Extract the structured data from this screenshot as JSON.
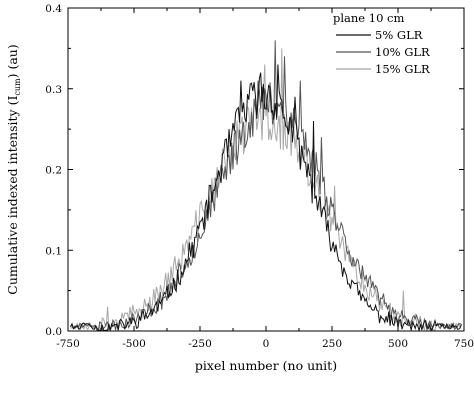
{
  "chart_data": {
    "type": "line",
    "xlabel": "pixel number (no unit)",
    "ylabel_main": "Cumulative indexed intensity (I",
    "ylabel_sub": "cum",
    "ylabel_end": ") (au)",
    "xlim": [
      -750,
      750
    ],
    "ylim": [
      0.0,
      0.4
    ],
    "x_ticks": [
      -750,
      -500,
      -250,
      0,
      250,
      500,
      750
    ],
    "x_tick_labels": [
      "-750",
      "-500",
      "-250",
      "0",
      "250",
      "500",
      "750"
    ],
    "y_ticks": [
      0.0,
      0.1,
      0.2,
      0.3,
      0.4
    ],
    "y_tick_labels": [
      "0.0",
      "0.1",
      "0.2",
      "0.3",
      "0.4"
    ],
    "grid": false,
    "legend": {
      "title": "plane 10 cm",
      "position": "top-right"
    },
    "series": [
      {
        "name": "5% GLR",
        "color": "#111111",
        "center": -10,
        "sigma": 185,
        "peak": 0.29,
        "noise": 0.02,
        "seed": 11,
        "spikes": [
          [
            -740,
            0.03
          ],
          [
            -700,
            0.07
          ],
          [
            -95,
            0.31
          ],
          [
            -20,
            0.32
          ],
          [
            45,
            0.33
          ],
          [
            110,
            0.29
          ],
          [
            180,
            0.26
          ]
        ]
      },
      {
        "name": "10% GLR",
        "color": "#555555",
        "center": 20,
        "sigma": 205,
        "peak": 0.28,
        "noise": 0.022,
        "seed": 23,
        "spikes": [
          [
            -690,
            0.04
          ],
          [
            -30,
            0.31
          ],
          [
            35,
            0.36
          ],
          [
            70,
            0.34
          ],
          [
            130,
            0.31
          ],
          [
            210,
            0.24
          ]
        ]
      },
      {
        "name": "15% GLR",
        "color": "#a8a8a8",
        "center": -5,
        "sigma": 215,
        "peak": 0.26,
        "noise": 0.024,
        "seed": 37,
        "spikes": [
          [
            -710,
            0.1
          ],
          [
            -600,
            0.03
          ],
          [
            -360,
            0.08
          ],
          [
            -5,
            0.33
          ],
          [
            60,
            0.35
          ],
          [
            260,
            0.18
          ],
          [
            520,
            0.05
          ]
        ]
      }
    ]
  }
}
